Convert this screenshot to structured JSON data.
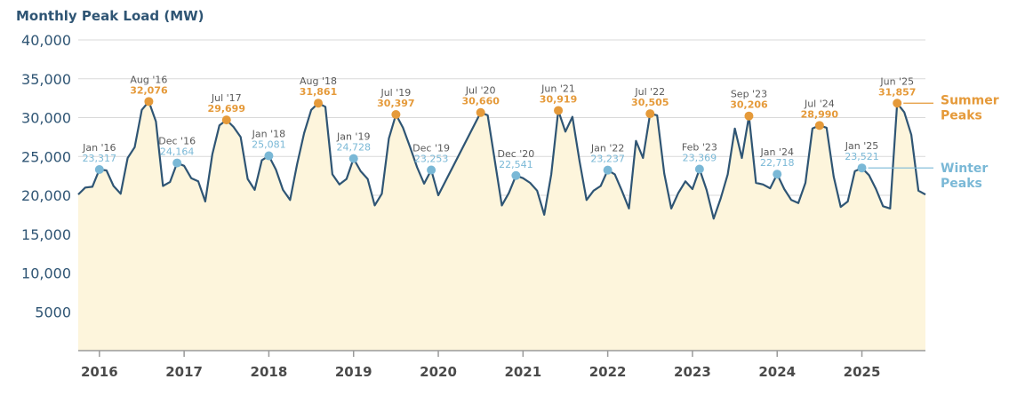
{
  "chart_data": {
    "type": "area",
    "title": "Monthly Peak Load (MW)",
    "xlabel": "",
    "ylabel": "",
    "ylim": [
      0,
      40000
    ],
    "xlim": [
      "2015-10",
      "2025-10"
    ],
    "yticks": [
      {
        "value": 5000,
        "label": "5000"
      },
      {
        "value": 10000,
        "label": "10,000"
      },
      {
        "value": 15000,
        "label": "15,000"
      },
      {
        "value": 20000,
        "label": "20,000"
      },
      {
        "value": 25000,
        "label": "25,000"
      },
      {
        "value": 30000,
        "label": "30,000"
      },
      {
        "value": 35000,
        "label": "35,000"
      },
      {
        "value": 40000,
        "label": "40,000"
      }
    ],
    "xticks": [
      {
        "date": "2016-01",
        "label": "2016"
      },
      {
        "date": "2017-01",
        "label": "2017"
      },
      {
        "date": "2018-01",
        "label": "2018"
      },
      {
        "date": "2019-01",
        "label": "2019"
      },
      {
        "date": "2020-01",
        "label": "2020"
      },
      {
        "date": "2021-01",
        "label": "2021"
      },
      {
        "date": "2022-01",
        "label": "2022"
      },
      {
        "date": "2023-01",
        "label": "2023"
      },
      {
        "date": "2024-01",
        "label": "2024"
      },
      {
        "date": "2025-01",
        "label": "2025"
      }
    ],
    "grid": true,
    "colors": {
      "line": "#2f5574",
      "area": "#fdf5dc",
      "summer": "#e59a3a",
      "winter": "#7ab8d6",
      "grid": "#d9d9d9"
    },
    "series": [
      {
        "values": [
          [
            "2015-10",
            20100
          ],
          [
            "2015-11",
            21000
          ],
          [
            "2015-12",
            21100
          ],
          [
            "2016-01",
            23317
          ],
          [
            "2016-02",
            23200
          ],
          [
            "2016-03",
            21200
          ],
          [
            "2016-04",
            20200
          ],
          [
            "2016-05",
            24800
          ],
          [
            "2016-06",
            26200
          ],
          [
            "2016-07",
            31000
          ],
          [
            "2016-08",
            32076
          ],
          [
            "2016-09",
            29500
          ],
          [
            "2016-10",
            21200
          ],
          [
            "2016-11",
            21700
          ],
          [
            "2016-12",
            24164
          ],
          [
            "2017-01",
            23800
          ],
          [
            "2017-02",
            22200
          ],
          [
            "2017-03",
            21800
          ],
          [
            "2017-04",
            19200
          ],
          [
            "2017-05",
            25300
          ],
          [
            "2017-06",
            29000
          ],
          [
            "2017-07",
            29699
          ],
          [
            "2017-08",
            28800
          ],
          [
            "2017-09",
            27500
          ],
          [
            "2017-10",
            22100
          ],
          [
            "2017-11",
            20700
          ],
          [
            "2017-12",
            24500
          ],
          [
            "2018-01",
            25081
          ],
          [
            "2018-02",
            23300
          ],
          [
            "2018-03",
            20700
          ],
          [
            "2018-04",
            19400
          ],
          [
            "2018-05",
            24000
          ],
          [
            "2018-06",
            28000
          ],
          [
            "2018-07",
            31000
          ],
          [
            "2018-08",
            31861
          ],
          [
            "2018-09",
            31400
          ],
          [
            "2018-10",
            22700
          ],
          [
            "2018-11",
            21400
          ],
          [
            "2018-12",
            22100
          ],
          [
            "2019-01",
            24728
          ],
          [
            "2019-02",
            23100
          ],
          [
            "2019-03",
            22100
          ],
          [
            "2019-04",
            18700
          ],
          [
            "2019-05",
            20200
          ],
          [
            "2019-06",
            27300
          ],
          [
            "2019-07",
            30397
          ],
          [
            "2019-08",
            28700
          ],
          [
            "2019-09",
            26200
          ],
          [
            "2019-10",
            23600
          ],
          [
            "2019-11",
            21500
          ],
          [
            "2019-12",
            23253
          ],
          [
            "2020-01",
            20000
          ],
          [
            "2020-07",
            30660
          ],
          [
            "2020-08",
            30300
          ],
          [
            "2020-10",
            18700
          ],
          [
            "2020-11",
            20300
          ],
          [
            "2020-12",
            22541
          ],
          [
            "2021-01",
            22200
          ],
          [
            "2021-02",
            21600
          ],
          [
            "2021-03",
            20600
          ],
          [
            "2021-04",
            17500
          ],
          [
            "2021-05",
            22700
          ],
          [
            "2021-06",
            30919
          ],
          [
            "2021-07",
            28200
          ],
          [
            "2021-08",
            30100
          ],
          [
            "2021-09",
            24400
          ],
          [
            "2021-10",
            19400
          ],
          [
            "2021-11",
            20600
          ],
          [
            "2021-12",
            21200
          ],
          [
            "2022-01",
            23237
          ],
          [
            "2022-02",
            22700
          ],
          [
            "2022-03",
            20600
          ],
          [
            "2022-04",
            18300
          ],
          [
            "2022-05",
            27000
          ],
          [
            "2022-06",
            24800
          ],
          [
            "2022-07",
            30505
          ],
          [
            "2022-08",
            30300
          ],
          [
            "2022-09",
            22800
          ],
          [
            "2022-10",
            18300
          ],
          [
            "2022-11",
            20300
          ],
          [
            "2022-12",
            21800
          ],
          [
            "2023-01",
            20800
          ],
          [
            "2023-02",
            23369
          ],
          [
            "2023-03",
            20700
          ],
          [
            "2023-04",
            17000
          ],
          [
            "2023-05",
            19600
          ],
          [
            "2023-06",
            22700
          ],
          [
            "2023-07",
            28600
          ],
          [
            "2023-08",
            24800
          ],
          [
            "2023-09",
            30206
          ],
          [
            "2023-10",
            21600
          ],
          [
            "2023-11",
            21400
          ],
          [
            "2023-12",
            20900
          ],
          [
            "2024-01",
            22718
          ],
          [
            "2024-02",
            20800
          ],
          [
            "2024-03",
            19400
          ],
          [
            "2024-04",
            19000
          ],
          [
            "2024-05",
            21600
          ],
          [
            "2024-06",
            28600
          ],
          [
            "2024-07",
            28990
          ],
          [
            "2024-08",
            28700
          ],
          [
            "2024-09",
            22400
          ],
          [
            "2024-10",
            18500
          ],
          [
            "2024-11",
            19200
          ],
          [
            "2024-12",
            23100
          ],
          [
            "2025-01",
            23521
          ],
          [
            "2025-02",
            22600
          ],
          [
            "2025-03",
            20800
          ],
          [
            "2025-04",
            18600
          ],
          [
            "2025-05",
            18300
          ],
          [
            "2025-06",
            31857
          ],
          [
            "2025-07",
            30700
          ],
          [
            "2025-08",
            27800
          ],
          [
            "2025-09",
            20600
          ],
          [
            "2025-10",
            20100
          ]
        ]
      }
    ],
    "summer_peaks": [
      {
        "date": "2016-08",
        "label": "Aug '16",
        "value": 32076,
        "value_label": "32,076"
      },
      {
        "date": "2017-07",
        "label": "Jul '17",
        "value": 29699,
        "value_label": "29,699"
      },
      {
        "date": "2018-08",
        "label": "Aug '18",
        "value": 31861,
        "value_label": "31,861"
      },
      {
        "date": "2019-07",
        "label": "Jul '19",
        "value": 30397,
        "value_label": "30,397"
      },
      {
        "date": "2020-07",
        "label": "Jul '20",
        "value": 30660,
        "value_label": "30,660"
      },
      {
        "date": "2021-06",
        "label": "Jun '21",
        "value": 30919,
        "value_label": "30,919"
      },
      {
        "date": "2022-07",
        "label": "Jul '22",
        "value": 30505,
        "value_label": "30,505"
      },
      {
        "date": "2023-09",
        "label": "Sep '23",
        "value": 30206,
        "value_label": "30,206"
      },
      {
        "date": "2024-07",
        "label": "Jul '24",
        "value": 28990,
        "value_label": "28,990"
      },
      {
        "date": "2025-06",
        "label": "Jun '25",
        "value": 31857,
        "value_label": "31,857"
      }
    ],
    "winter_peaks": [
      {
        "date": "2016-01",
        "label": "Jan '16",
        "value": 23317,
        "value_label": "23,317"
      },
      {
        "date": "2016-12",
        "label": "Dec '16",
        "value": 24164,
        "value_label": "24,164"
      },
      {
        "date": "2018-01",
        "label": "Jan '18",
        "value": 25081,
        "value_label": "25,081"
      },
      {
        "date": "2019-01",
        "label": "Jan '19",
        "value": 24728,
        "value_label": "24,728"
      },
      {
        "date": "2019-12",
        "label": "Dec '19",
        "value": 23253,
        "value_label": "23,253"
      },
      {
        "date": "2020-12",
        "label": "Dec '20",
        "value": 22541,
        "value_label": "22,541"
      },
      {
        "date": "2022-01",
        "label": "Jan '22",
        "value": 23237,
        "value_label": "23,237"
      },
      {
        "date": "2023-02",
        "label": "Feb '23",
        "value": 23369,
        "value_label": "23,369"
      },
      {
        "date": "2024-01",
        "label": "Jan '24",
        "value": 22718,
        "value_label": "22,718"
      },
      {
        "date": "2025-01",
        "label": "Jan '25",
        "value": 23521,
        "value_label": "23,521"
      }
    ],
    "legend": {
      "placement": "right",
      "summer_lines": [
        "Summer",
        "Peaks"
      ],
      "winter_lines": [
        "Winter",
        "Peaks"
      ]
    }
  }
}
